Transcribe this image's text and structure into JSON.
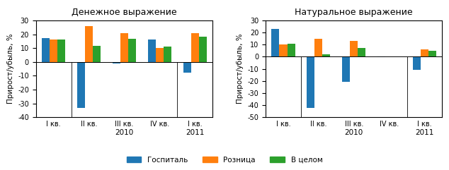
{
  "chart_data": [
    {
      "type": "bar",
      "title": "Денежное выражение",
      "ylabel": "Прирост/убыль, %",
      "categories": [
        "I кв.",
        "II кв.",
        "III кв.",
        "IV кв.",
        "I кв."
      ],
      "series": [
        {
          "name": "Госпиталь",
          "values": [
            17,
            -33,
            -1,
            16,
            -8
          ]
        },
        {
          "name": "Розница",
          "values": [
            16,
            26,
            21,
            10,
            21
          ]
        },
        {
          "name": "В целом",
          "values": [
            16,
            11.5,
            16.5,
            11,
            18
          ]
        }
      ],
      "ylim": [
        -40,
        30
      ],
      "yticks": [
        -40,
        -30,
        -20,
        -10,
        0,
        10,
        20,
        30
      ],
      "annotations": [
        {
          "text": "2010",
          "x": [
            1,
            3
          ]
        },
        {
          "text": "2011",
          "x": [
            4,
            4
          ]
        }
      ],
      "legend": "lower center"
    },
    {
      "type": "bar",
      "title": "Натуральное выражение",
      "ylabel": "Прирост/убыль, %",
      "categories": [
        "I кв.",
        "II кв.",
        "III кв.",
        "IV кв.",
        "I кв."
      ],
      "series": [
        {
          "name": "Госпиталь",
          "values": [
            23,
            -42,
            -21,
            -0.5,
            -11
          ]
        },
        {
          "name": "Розница",
          "values": [
            10,
            15,
            13,
            0.5,
            6
          ]
        },
        {
          "name": "В целом",
          "values": [
            10.5,
            2,
            7,
            0,
            5
          ]
        }
      ],
      "ylim": [
        -50,
        30
      ],
      "yticks": [
        -50,
        -40,
        -30,
        -20,
        -10,
        0,
        10,
        20,
        30
      ],
      "annotations": [
        {
          "text": "2010",
          "x": [
            1,
            3
          ]
        },
        {
          "text": "2011",
          "x": [
            4,
            4
          ]
        }
      ],
      "legend": "lower center"
    }
  ]
}
